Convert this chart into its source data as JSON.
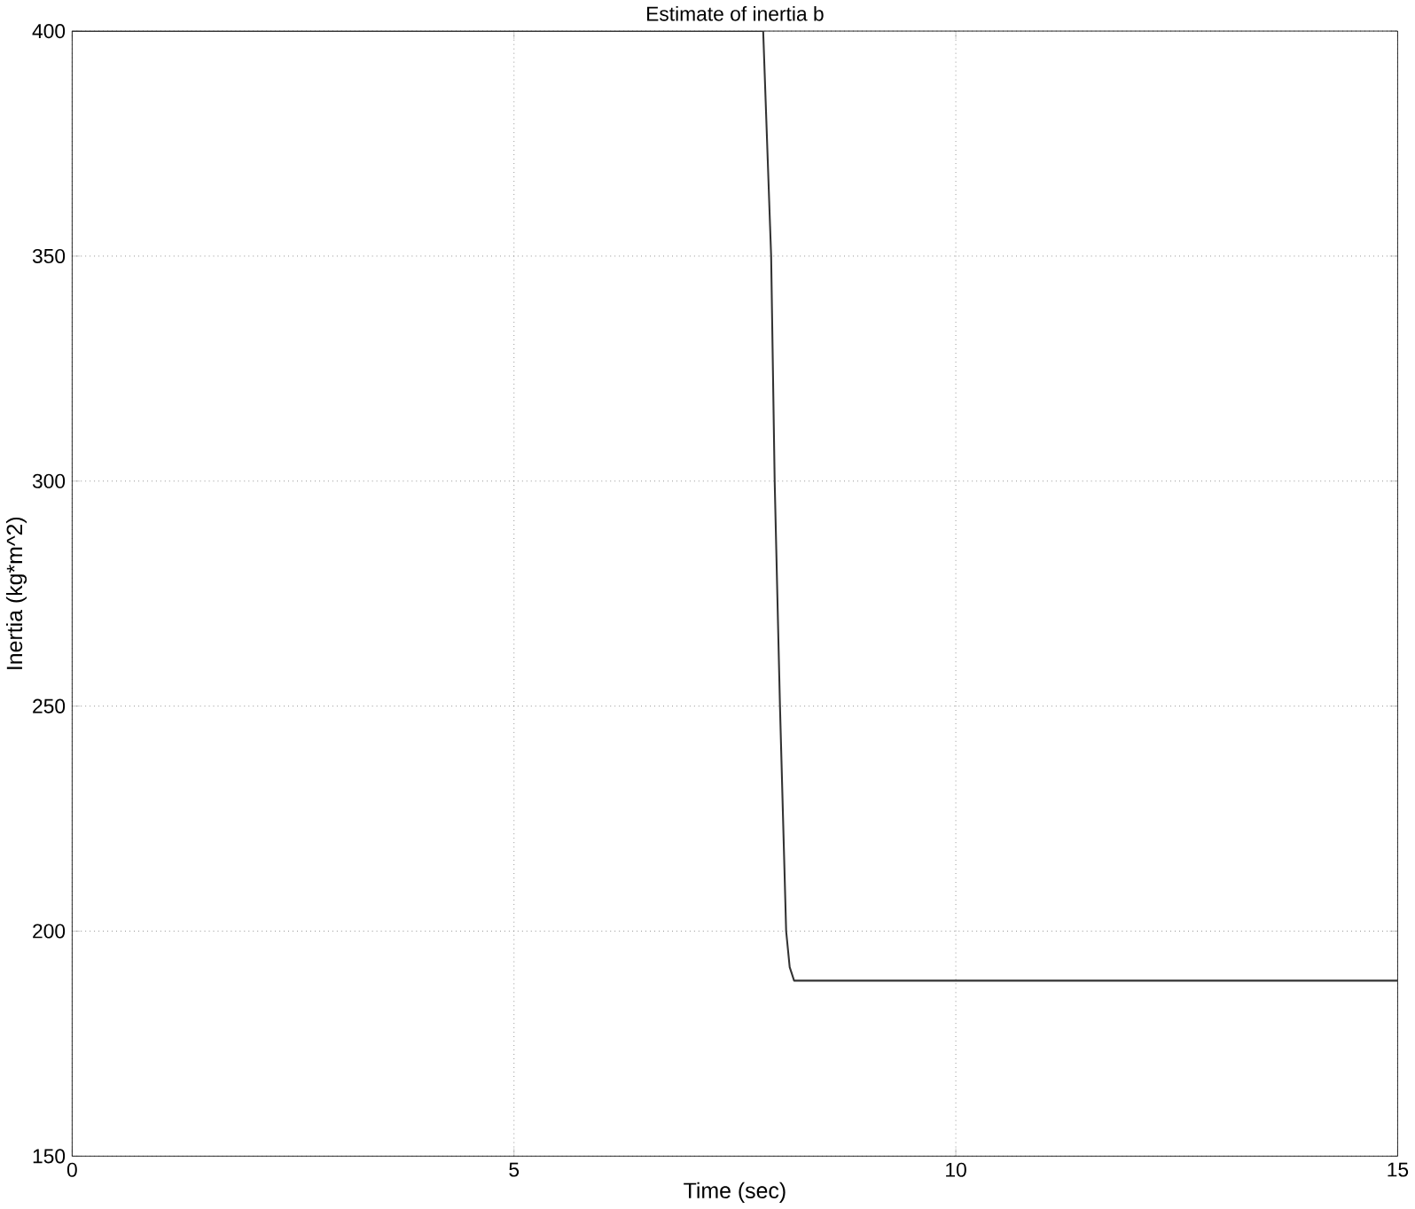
{
  "chart_data": {
    "type": "line",
    "title": "Estimate of inertia b",
    "xlabel": "Time (sec)",
    "ylabel": "Inertia (kg*m^2)",
    "series": [
      {
        "color": "#333333",
        "x": [
          0,
          7.82,
          7.91,
          7.95,
          8.01,
          8.08,
          8.12,
          8.17,
          15
        ],
        "values": [
          400,
          400,
          350,
          300,
          250,
          200,
          192,
          189,
          189
        ]
      }
    ],
    "xlim": [
      0,
      15
    ],
    "ylim": [
      150,
      400
    ],
    "xticks": [
      0,
      5,
      10,
      15
    ],
    "yticks": [
      150,
      200,
      250,
      300,
      350,
      400
    ],
    "grid": true
  }
}
